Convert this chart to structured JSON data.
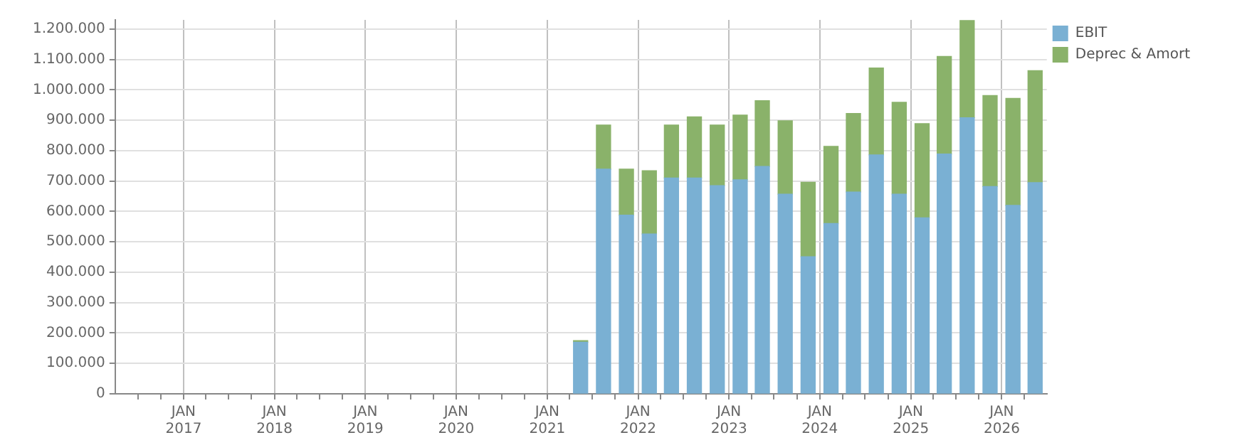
{
  "chart_data": {
    "type": "bar",
    "stacked": true,
    "x": [
      "2021-05-15",
      "2021-08-15",
      "2021-11-15",
      "2022-02-15",
      "2022-05-15",
      "2022-08-15",
      "2022-11-15",
      "2023-02-15",
      "2023-05-15",
      "2023-08-15",
      "2023-11-15",
      "2024-02-15",
      "2024-05-15",
      "2024-08-15",
      "2024-11-15",
      "2025-02-15",
      "2025-05-15",
      "2025-08-15",
      "2025-11-15",
      "2026-02-15",
      "2026-05-15"
    ],
    "series": [
      {
        "name": "EBIT",
        "color": "#7ab0d3",
        "values": [
          170000,
          739000,
          588000,
          526000,
          710000,
          710000,
          685000,
          704000,
          748000,
          657000,
          451000,
          560000,
          664000,
          786000,
          657000,
          579000,
          789000,
          908000,
          682000,
          620000,
          695000
        ]
      },
      {
        "name": "Deprec & Amort",
        "color": "#8ab26a",
        "values": [
          5000,
          145000,
          151000,
          208000,
          174000,
          201000,
          199000,
          213000,
          216000,
          241000,
          245000,
          254000,
          258000,
          286000,
          302000,
          310000,
          321000,
          320000,
          299000,
          352000,
          368000
        ]
      }
    ],
    "xlim": [
      "2016-04-01",
      "2026-07-01"
    ],
    "xticks": [
      {
        "value": "2016-07-01",
        "label": null
      },
      {
        "value": "2016-10-01",
        "label": null
      },
      {
        "value": "2017-01-01",
        "label": "JAN 2017"
      },
      {
        "value": "2017-04-01",
        "label": null
      },
      {
        "value": "2017-07-01",
        "label": null
      },
      {
        "value": "2017-10-01",
        "label": null
      },
      {
        "value": "2018-01-01",
        "label": "JAN 2018"
      },
      {
        "value": "2018-04-01",
        "label": null
      },
      {
        "value": "2018-07-01",
        "label": null
      },
      {
        "value": "2018-10-01",
        "label": null
      },
      {
        "value": "2019-01-01",
        "label": "JAN 2019"
      },
      {
        "value": "2019-04-01",
        "label": null
      },
      {
        "value": "2019-07-01",
        "label": null
      },
      {
        "value": "2019-10-01",
        "label": null
      },
      {
        "value": "2020-01-01",
        "label": "JAN 2020"
      },
      {
        "value": "2020-04-01",
        "label": null
      },
      {
        "value": "2020-07-01",
        "label": null
      },
      {
        "value": "2020-10-01",
        "label": null
      },
      {
        "value": "2021-01-01",
        "label": "JAN 2021"
      },
      {
        "value": "2021-04-01",
        "label": null
      },
      {
        "value": "2021-07-01",
        "label": null
      },
      {
        "value": "2021-10-01",
        "label": null
      },
      {
        "value": "2022-01-01",
        "label": "JAN 2022"
      },
      {
        "value": "2022-04-01",
        "label": null
      },
      {
        "value": "2022-07-01",
        "label": null
      },
      {
        "value": "2022-10-01",
        "label": null
      },
      {
        "value": "2023-01-01",
        "label": "JAN 2023"
      },
      {
        "value": "2023-04-01",
        "label": null
      },
      {
        "value": "2023-07-01",
        "label": null
      },
      {
        "value": "2023-10-01",
        "label": null
      },
      {
        "value": "2024-01-01",
        "label": "JAN 2024"
      },
      {
        "value": "2024-04-01",
        "label": null
      },
      {
        "value": "2024-07-01",
        "label": null
      },
      {
        "value": "2024-10-01",
        "label": null
      },
      {
        "value": "2025-01-01",
        "label": "JAN 2025"
      },
      {
        "value": "2025-04-01",
        "label": null
      },
      {
        "value": "2025-07-01",
        "label": null
      },
      {
        "value": "2025-10-01",
        "label": null
      },
      {
        "value": "2026-01-01",
        "label": "JAN 2026"
      },
      {
        "value": "2026-04-01",
        "label": null
      }
    ],
    "ylim": [
      0,
      1230000
    ],
    "yticks": [
      {
        "value": 0,
        "label": "0"
      },
      {
        "value": 100000,
        "label": "100.000"
      },
      {
        "value": 200000,
        "label": "200.000"
      },
      {
        "value": 300000,
        "label": "300.000"
      },
      {
        "value": 400000,
        "label": "400.000"
      },
      {
        "value": 500000,
        "label": "500.000"
      },
      {
        "value": 600000,
        "label": "600.000"
      },
      {
        "value": 700000,
        "label": "700.000"
      },
      {
        "value": 800000,
        "label": "800.000"
      },
      {
        "value": 900000,
        "label": "900.000"
      },
      {
        "value": 1000000,
        "label": "1.000.000"
      },
      {
        "value": 1100000,
        "label": "1.100.000"
      },
      {
        "value": 1200000,
        "label": "1.200.000"
      }
    ],
    "grid": true,
    "legend": "top right"
  }
}
